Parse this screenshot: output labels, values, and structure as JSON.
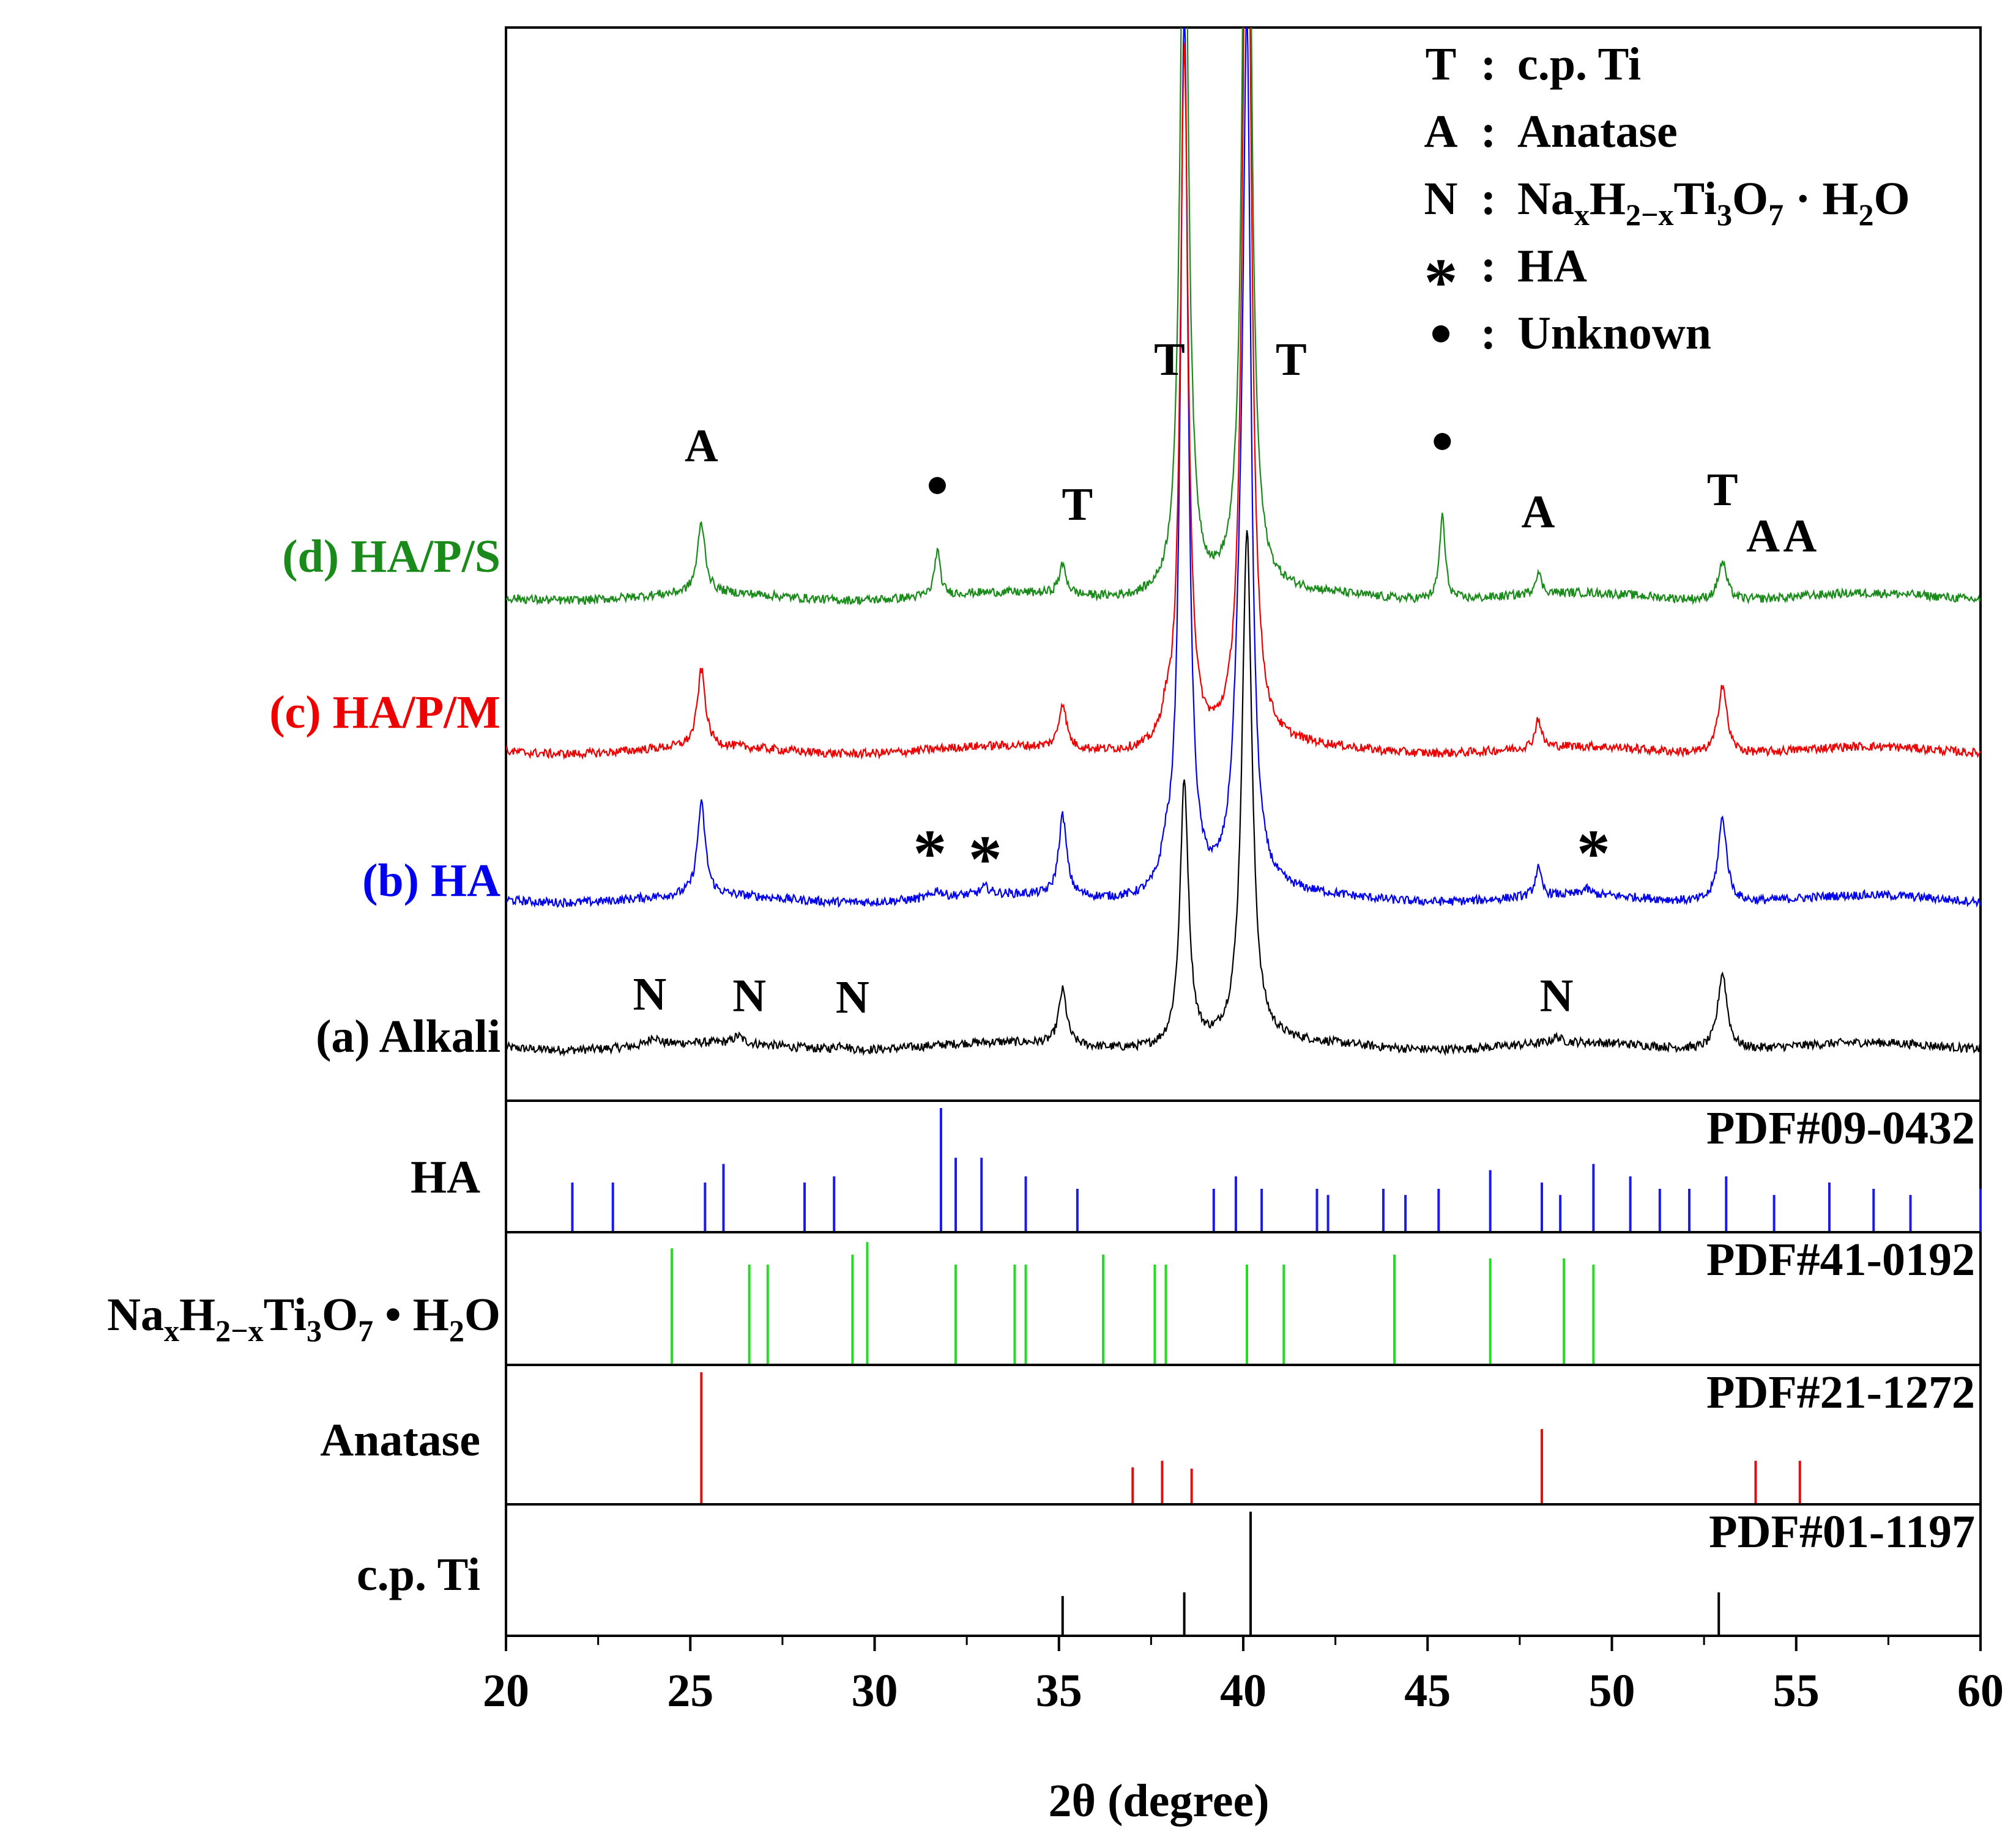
{
  "chart_data": {
    "type": "line",
    "title": "",
    "xlabel": "2θ (degree)",
    "ylabel": "",
    "xlim": [
      20,
      60
    ],
    "xticks": [
      20,
      25,
      30,
      35,
      40,
      45,
      50,
      55,
      60
    ],
    "grid": false,
    "legend_placement": "top-right",
    "legend": [
      {
        "symbol": "T",
        "sep": ":",
        "text": "c.p. Ti"
      },
      {
        "symbol": "A",
        "sep": ":",
        "text": "Anatase"
      },
      {
        "symbol": "N",
        "sep": ":",
        "text": "NaxH2−xTi3O7 · H2O"
      },
      {
        "symbol": "*",
        "sep": ":",
        "text": "HA"
      },
      {
        "symbol": "•",
        "sep": ":",
        "text": "Unknown"
      }
    ],
    "colors": {
      "alkali": "#000000",
      "ha": "#0000ee",
      "hapm": "#ee0000",
      "haps": "#1a8a1a",
      "pdf_ha": "#1a1aee",
      "pdf_naht": "#22dd22",
      "pdf_anatase": "#dd1111",
      "pdf_ti": "#000000"
    },
    "series": [
      {
        "id": "haps",
        "name": "(d) HA/P/S",
        "baseline": 0.2,
        "noise": 0.06,
        "peaks": [
          [
            25.3,
            0.95,
            0.13
          ],
          [
            31.7,
            0.62,
            0.09
          ],
          [
            35.1,
            0.4,
            0.12
          ],
          [
            38.4,
            11.2,
            0.13
          ],
          [
            40.1,
            14.0,
            0.13
          ],
          [
            45.4,
            1.15,
            0.09
          ],
          [
            48.0,
            0.3,
            0.1
          ],
          [
            53.0,
            0.52,
            0.14
          ]
        ],
        "markers": [
          {
            "x": 25.3,
            "y": 2.05,
            "label": "A"
          },
          {
            "x": 31.7,
            "y": 1.6,
            "label": "•"
          },
          {
            "x": 35.5,
            "y": 1.25,
            "label": "T"
          },
          {
            "x": 45.4,
            "y": 2.2,
            "label": "•"
          },
          {
            "x": 48.0,
            "y": 1.15,
            "label": "A"
          },
          {
            "x": 53.0,
            "y": 1.45,
            "label": "T"
          },
          {
            "x": 54.1,
            "y": 0.82,
            "label": "A"
          },
          {
            "x": 55.1,
            "y": 0.82,
            "label": "A"
          }
        ]
      },
      {
        "id": "hapm",
        "name": "(c) HA/P/M",
        "baseline": 0.15,
        "noise": 0.06,
        "peaks": [
          [
            25.3,
            1.05,
            0.13
          ],
          [
            35.1,
            0.62,
            0.12
          ],
          [
            37.9,
            0.3,
            0.15
          ],
          [
            38.4,
            9.5,
            0.13
          ],
          [
            40.1,
            13.5,
            0.14
          ],
          [
            48.0,
            0.4,
            0.1
          ],
          [
            53.0,
            0.95,
            0.14
          ]
        ],
        "markers": []
      },
      {
        "id": "ha",
        "name": "(b) HA",
        "baseline": 0.25,
        "noise": 0.06,
        "peaks": [
          [
            25.3,
            1.25,
            0.13
          ],
          [
            31.7,
            0.1,
            0.15
          ],
          [
            33.0,
            0.1,
            0.15
          ],
          [
            35.1,
            1.1,
            0.13
          ],
          [
            37.9,
            0.35,
            0.15
          ],
          [
            38.4,
            12.0,
            0.13
          ],
          [
            39.9,
            2.0,
            0.2
          ],
          [
            40.1,
            11.0,
            0.13
          ],
          [
            48.0,
            0.38,
            0.1
          ],
          [
            49.3,
            0.08,
            0.15
          ],
          [
            53.0,
            1.15,
            0.14
          ]
        ],
        "markers": [
          {
            "x": 31.5,
            "y": 0.9,
            "label": "*"
          },
          {
            "x": 33.0,
            "y": 0.82,
            "label": "*"
          },
          {
            "x": 49.5,
            "y": 0.9,
            "label": "*"
          }
        ]
      },
      {
        "id": "alkali",
        "name": "(a) Alkali",
        "baseline": 0.2,
        "noise": 0.06,
        "peaks": [
          [
            24.0,
            0.12,
            0.15
          ],
          [
            26.3,
            0.1,
            0.15
          ],
          [
            29.1,
            0.08,
            0.15
          ],
          [
            35.1,
            0.75,
            0.13
          ],
          [
            38.4,
            3.6,
            0.14
          ],
          [
            40.1,
            7.0,
            0.16
          ],
          [
            48.5,
            0.08,
            0.15
          ],
          [
            53.0,
            1.05,
            0.15
          ]
        ],
        "markers": [
          {
            "x": 23.9,
            "y": 0.7,
            "label": "N"
          },
          {
            "x": 26.6,
            "y": 0.68,
            "label": "N"
          },
          {
            "x": 29.4,
            "y": 0.66,
            "label": "N"
          },
          {
            "x": 38.0,
            "y": 9.35,
            "label": "T"
          },
          {
            "x": 41.3,
            "y": 9.35,
            "label": "T"
          },
          {
            "x": 48.5,
            "y": 0.68,
            "label": "N"
          }
        ]
      }
    ],
    "reference_patterns": [
      {
        "id": "pdf_ha",
        "name": "HA",
        "pdf": "PDF#09-0432",
        "lines": [
          [
            21.8,
            0.4
          ],
          [
            22.9,
            0.4
          ],
          [
            25.4,
            0.4
          ],
          [
            25.9,
            0.55
          ],
          [
            28.1,
            0.4
          ],
          [
            28.9,
            0.45
          ],
          [
            31.8,
            1.0
          ],
          [
            32.2,
            0.6
          ],
          [
            32.9,
            0.6
          ],
          [
            34.1,
            0.45
          ],
          [
            35.5,
            0.35
          ],
          [
            39.2,
            0.35
          ],
          [
            39.8,
            0.45
          ],
          [
            40.5,
            0.35
          ],
          [
            42.0,
            0.35
          ],
          [
            42.3,
            0.3
          ],
          [
            43.8,
            0.35
          ],
          [
            44.4,
            0.3
          ],
          [
            45.3,
            0.35
          ],
          [
            46.7,
            0.5
          ],
          [
            48.1,
            0.4
          ],
          [
            48.6,
            0.3
          ],
          [
            49.5,
            0.55
          ],
          [
            50.5,
            0.45
          ],
          [
            51.3,
            0.35
          ],
          [
            52.1,
            0.35
          ],
          [
            53.1,
            0.45
          ],
          [
            54.4,
            0.3
          ],
          [
            55.9,
            0.4
          ],
          [
            57.1,
            0.35
          ],
          [
            58.1,
            0.3
          ],
          [
            60.0,
            0.35
          ]
        ]
      },
      {
        "id": "pdf_naht",
        "name": "NaxH2−xTi3O7 • H2O",
        "pdf": "PDF#41-0192",
        "lines": [
          [
            24.5,
            0.93
          ],
          [
            26.6,
            0.8
          ],
          [
            27.1,
            0.8
          ],
          [
            29.4,
            0.88
          ],
          [
            29.8,
            0.98
          ],
          [
            32.2,
            0.8
          ],
          [
            33.8,
            0.8
          ],
          [
            34.1,
            0.8
          ],
          [
            36.2,
            0.88
          ],
          [
            37.6,
            0.8
          ],
          [
            37.9,
            0.8
          ],
          [
            40.1,
            0.8
          ],
          [
            41.1,
            0.8
          ],
          [
            44.1,
            0.88
          ],
          [
            46.7,
            0.85
          ],
          [
            48.7,
            0.85
          ],
          [
            49.5,
            0.8
          ]
        ]
      },
      {
        "id": "pdf_anatase",
        "name": "Anatase",
        "pdf": "PDF#21-1272",
        "lines": [
          [
            25.3,
            1.0
          ],
          [
            37.0,
            0.28
          ],
          [
            37.8,
            0.33
          ],
          [
            38.6,
            0.27
          ],
          [
            48.1,
            0.57
          ],
          [
            53.9,
            0.33
          ],
          [
            55.1,
            0.33
          ]
        ]
      },
      {
        "id": "pdf_ti",
        "name": "c.p. Ti",
        "pdf": "PDF#01-1197",
        "lines": [
          [
            35.1,
            0.32
          ],
          [
            38.4,
            0.35
          ],
          [
            40.2,
            1.0
          ],
          [
            52.9,
            0.35
          ]
        ]
      }
    ]
  }
}
